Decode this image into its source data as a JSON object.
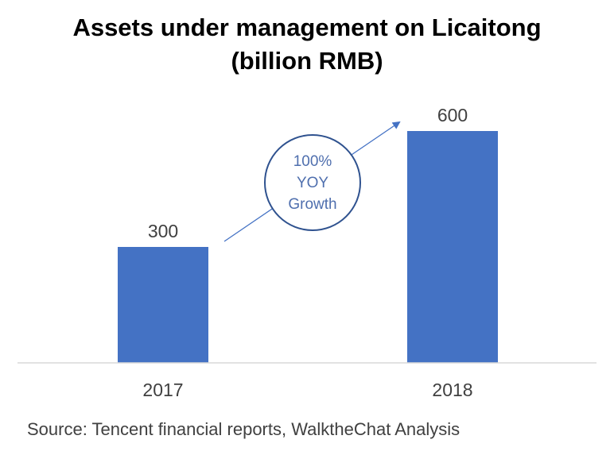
{
  "title_line1": "Assets under management on Licaitong",
  "title_line2": "(billion RMB)",
  "source": "Source: Tencent financial reports, WalktheChat Analysis",
  "annotation": {
    "lines": [
      "100%",
      "YOY",
      "Growth"
    ],
    "color": "#2f528f"
  },
  "colors": {
    "bar": "#4472c4",
    "axis": "#d9d9d9",
    "label": "#404040",
    "arrow": "#4472c4"
  },
  "chart_data": {
    "type": "bar",
    "categories": [
      "2017",
      "2018"
    ],
    "values": [
      300,
      600
    ],
    "data_labels": [
      "300",
      "600"
    ],
    "title": "Assets under management on Licaitong (billion RMB)",
    "xlabel": "",
    "ylabel": "",
    "ylim": [
      0,
      680
    ],
    "grid": false,
    "legend": "none"
  }
}
